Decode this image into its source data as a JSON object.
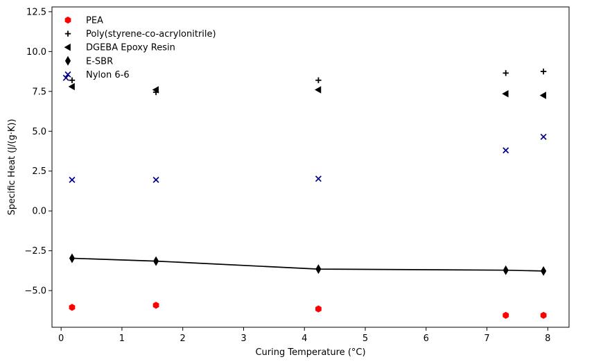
{
  "chart_data": {
    "type": "scatter",
    "title": "",
    "xlabel": "Curing Temperature (°C)",
    "ylabel": "Specific Heat (J/(g·K))",
    "xlim": [
      -0.15,
      8.35
    ],
    "ylim": [
      -7.3,
      12.8
    ],
    "xticks": [
      0,
      1,
      2,
      3,
      4,
      5,
      6,
      7,
      8
    ],
    "yticks": [
      -5.0,
      -2.5,
      0.0,
      2.5,
      5.0,
      7.5,
      10.0,
      12.5
    ],
    "xtick_labels": [
      "0",
      "1",
      "2",
      "3",
      "4",
      "5",
      "6",
      "7",
      "8"
    ],
    "ytick_labels": [
      "−5.0",
      "−2.5",
      "0.0",
      "2.5",
      "5.0",
      "7.5",
      "10.0",
      "12.5"
    ],
    "grid": false,
    "legend_position": "top-left",
    "x": [
      0.18,
      1.56,
      4.23,
      7.31,
      7.93
    ],
    "series": [
      {
        "name": "PEA",
        "marker": "hexagon",
        "color": "#ff0000",
        "line": false,
        "y": [
          -6.05,
          -5.92,
          -6.15,
          -6.55,
          -6.55
        ]
      },
      {
        "name": "Poly(styrene-co-acrylonitrile)",
        "marker": "plus",
        "color": "#000000",
        "line": false,
        "y": [
          8.2,
          7.45,
          8.2,
          8.65,
          8.75
        ]
      },
      {
        "name": "DGEBA Epoxy Resin",
        "marker": "triangle-left",
        "color": "#000000",
        "line": false,
        "y": [
          7.8,
          7.6,
          7.6,
          7.35,
          7.25
        ]
      },
      {
        "name": "E-SBR",
        "marker": "thin-diamond",
        "color": "#000000",
        "line": true,
        "y": [
          -2.97,
          -3.15,
          -3.65,
          -3.72,
          -3.77
        ]
      },
      {
        "name": "Nylon 6-6",
        "marker": "x",
        "color": "#00008b",
        "line": false,
        "y": [
          1.95,
          1.95,
          2.02,
          3.8,
          4.65
        ]
      }
    ],
    "extra_points": [
      {
        "series": "Nylon 6-6",
        "x": 0.08,
        "y": 8.35
      }
    ]
  }
}
